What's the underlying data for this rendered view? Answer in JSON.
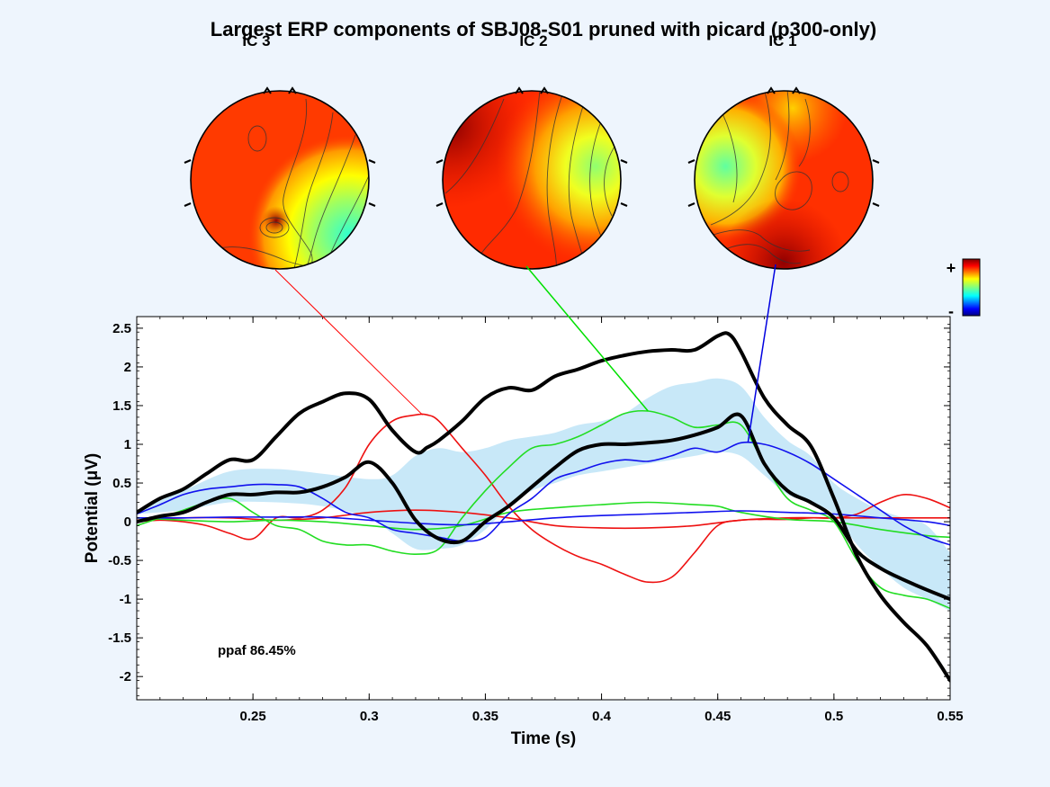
{
  "title": "Largest ERP components of SBJ08-S01 pruned with picard (p300-only)",
  "scalp_maps": [
    {
      "label": "IC 3",
      "color": "#ff0000"
    },
    {
      "label": "IC 2",
      "color": "#00e000"
    },
    {
      "label": "IC 1",
      "color": "#0000e0"
    }
  ],
  "colorbar": {
    "plus": "+",
    "minus": "-"
  },
  "annotation": "ppaf 86.45%",
  "chart_data": {
    "type": "line",
    "xlabel": "Time (s)",
    "ylabel": "Potential (μV)",
    "xlim": [
      0.2,
      0.55
    ],
    "ylim": [
      -2.3,
      2.65
    ],
    "xticks": [
      0.25,
      0.3,
      0.35,
      0.4,
      0.45,
      0.5,
      0.55
    ],
    "xtick_labels": [
      "0.25",
      "0.3",
      "0.35",
      "0.4",
      "0.45",
      "0.5",
      "0.55"
    ],
    "yticks": [
      2.5,
      2,
      1.5,
      1,
      0.5,
      0,
      -0.5,
      -1,
      -1.5,
      -2
    ],
    "ytick_labels": [
      "2.5",
      "2",
      "1.5",
      "1",
      "0.5",
      "0",
      "-0.5",
      "-1",
      "-1.5",
      "-2"
    ],
    "grid": false,
    "band": {
      "color": "#c8e8f8",
      "x": [
        0.2,
        0.22,
        0.24,
        0.26,
        0.28,
        0.3,
        0.31,
        0.32,
        0.33,
        0.34,
        0.35,
        0.36,
        0.37,
        0.38,
        0.39,
        0.4,
        0.41,
        0.42,
        0.43,
        0.44,
        0.45,
        0.46,
        0.47,
        0.48,
        0.49,
        0.5,
        0.51,
        0.52,
        0.53,
        0.54,
        0.55
      ],
      "upper": [
        0.15,
        0.4,
        0.65,
        0.68,
        0.62,
        0.55,
        0.6,
        0.85,
        0.95,
        0.9,
        0.95,
        1.05,
        1.1,
        1.15,
        1.25,
        1.3,
        1.4,
        1.6,
        1.75,
        1.8,
        1.85,
        1.75,
        1.35,
        1.05,
        0.85,
        0.5,
        0.3,
        0.15,
        0.05,
        -0.05,
        -0.4
      ],
      "lower": [
        0.1,
        0.15,
        0.25,
        0.25,
        0.2,
        0.05,
        -0.15,
        -0.35,
        -0.35,
        -0.3,
        -0.1,
        0.2,
        0.4,
        0.5,
        0.6,
        0.65,
        0.7,
        0.75,
        0.8,
        0.85,
        0.9,
        0.85,
        0.6,
        0.35,
        0.25,
        0.1,
        -0.3,
        -0.6,
        -0.85,
        -1.0,
        -1.15
      ]
    },
    "series": [
      {
        "color": "#000000",
        "width": 4,
        "x": [
          0.2,
          0.21,
          0.22,
          0.23,
          0.24,
          0.25,
          0.26,
          0.27,
          0.28,
          0.29,
          0.3,
          0.31,
          0.32,
          0.325,
          0.33,
          0.34,
          0.35,
          0.36,
          0.37,
          0.38,
          0.39,
          0.4,
          0.41,
          0.42,
          0.43,
          0.44,
          0.45,
          0.455,
          0.46,
          0.47,
          0.48,
          0.49,
          0.5,
          0.51,
          0.52,
          0.53,
          0.54,
          0.55
        ],
        "y": [
          0.12,
          0.3,
          0.42,
          0.62,
          0.8,
          0.8,
          1.1,
          1.4,
          1.55,
          1.66,
          1.58,
          1.18,
          0.9,
          0.96,
          1.05,
          1.3,
          1.6,
          1.73,
          1.7,
          1.88,
          1.97,
          2.08,
          2.15,
          2.2,
          2.22,
          2.22,
          2.4,
          2.42,
          2.2,
          1.6,
          1.25,
          0.98,
          0.3,
          -0.45,
          -0.95,
          -1.3,
          -1.6,
          -2.05
        ]
      },
      {
        "color": "#000000",
        "width": 4,
        "x": [
          0.2,
          0.21,
          0.22,
          0.23,
          0.24,
          0.25,
          0.26,
          0.27,
          0.28,
          0.29,
          0.3,
          0.31,
          0.32,
          0.33,
          0.34,
          0.35,
          0.36,
          0.37,
          0.38,
          0.39,
          0.4,
          0.41,
          0.42,
          0.43,
          0.44,
          0.45,
          0.46,
          0.47,
          0.48,
          0.49,
          0.5,
          0.51,
          0.52,
          0.53,
          0.54,
          0.55
        ],
        "y": [
          0.0,
          0.07,
          0.12,
          0.25,
          0.35,
          0.35,
          0.38,
          0.38,
          0.45,
          0.58,
          0.77,
          0.5,
          0.02,
          -0.22,
          -0.25,
          0.0,
          0.2,
          0.45,
          0.7,
          0.92,
          1.0,
          1.0,
          1.02,
          1.05,
          1.12,
          1.22,
          1.37,
          0.75,
          0.4,
          0.25,
          0.05,
          -0.38,
          -0.6,
          -0.75,
          -0.88,
          -1.0
        ]
      },
      {
        "color": "#ee1111",
        "width": 1.6,
        "x": [
          0.2,
          0.21,
          0.22,
          0.23,
          0.24,
          0.25,
          0.26,
          0.27,
          0.28,
          0.29,
          0.3,
          0.31,
          0.32,
          0.325,
          0.33,
          0.34,
          0.35,
          0.36,
          0.37,
          0.38,
          0.39,
          0.4,
          0.41,
          0.42,
          0.43,
          0.44,
          0.45,
          0.46,
          0.47,
          0.48,
          0.49,
          0.5,
          0.51,
          0.52,
          0.53,
          0.54,
          0.55
        ],
        "y": [
          0.0,
          0.02,
          0.0,
          -0.05,
          -0.15,
          -0.22,
          0.05,
          0.05,
          0.15,
          0.45,
          1.0,
          1.3,
          1.38,
          1.38,
          1.3,
          0.95,
          0.6,
          0.2,
          -0.1,
          -0.3,
          -0.45,
          -0.55,
          -0.68,
          -0.78,
          -0.72,
          -0.4,
          -0.05,
          0.02,
          0.03,
          0.03,
          0.05,
          0.05,
          0.1,
          0.25,
          0.35,
          0.3,
          0.18
        ]
      },
      {
        "color": "#ee1111",
        "width": 1.6,
        "x": [
          0.2,
          0.22,
          0.24,
          0.26,
          0.28,
          0.3,
          0.32,
          0.34,
          0.36,
          0.38,
          0.4,
          0.42,
          0.44,
          0.46,
          0.48,
          0.5,
          0.52,
          0.54,
          0.55
        ],
        "y": [
          0.02,
          0.05,
          0.05,
          0.02,
          0.05,
          0.12,
          0.15,
          0.12,
          0.05,
          -0.05,
          -0.08,
          -0.08,
          -0.05,
          0.02,
          0.05,
          0.05,
          0.05,
          0.05,
          0.05
        ]
      },
      {
        "color": "#22dd22",
        "width": 1.6,
        "x": [
          0.2,
          0.21,
          0.22,
          0.23,
          0.24,
          0.25,
          0.26,
          0.27,
          0.28,
          0.29,
          0.3,
          0.31,
          0.32,
          0.33,
          0.34,
          0.35,
          0.36,
          0.37,
          0.38,
          0.39,
          0.4,
          0.41,
          0.42,
          0.43,
          0.44,
          0.45,
          0.46,
          0.47,
          0.48,
          0.49,
          0.5,
          0.51,
          0.52,
          0.53,
          0.54,
          0.55
        ],
        "y": [
          -0.05,
          0.05,
          0.15,
          0.25,
          0.3,
          0.12,
          -0.05,
          -0.1,
          -0.25,
          -0.3,
          -0.3,
          -0.38,
          -0.42,
          -0.35,
          0.05,
          0.4,
          0.7,
          0.95,
          1.0,
          1.1,
          1.25,
          1.4,
          1.43,
          1.35,
          1.22,
          1.25,
          1.25,
          0.75,
          0.3,
          0.15,
          0.0,
          -0.5,
          -0.85,
          -0.95,
          -1.0,
          -1.12
        ]
      },
      {
        "color": "#22dd22",
        "width": 1.6,
        "x": [
          0.2,
          0.22,
          0.24,
          0.26,
          0.28,
          0.3,
          0.32,
          0.34,
          0.36,
          0.38,
          0.4,
          0.42,
          0.44,
          0.45,
          0.46,
          0.48,
          0.5,
          0.52,
          0.54,
          0.55
        ],
        "y": [
          0.05,
          0.02,
          0.0,
          0.02,
          0.0,
          -0.05,
          -0.1,
          -0.05,
          0.12,
          0.18,
          0.22,
          0.25,
          0.22,
          0.2,
          0.12,
          0.03,
          0.0,
          -0.1,
          -0.18,
          -0.2
        ]
      },
      {
        "color": "#1111ee",
        "width": 1.6,
        "x": [
          0.2,
          0.21,
          0.22,
          0.23,
          0.24,
          0.25,
          0.26,
          0.27,
          0.28,
          0.29,
          0.3,
          0.31,
          0.32,
          0.33,
          0.34,
          0.35,
          0.36,
          0.37,
          0.38,
          0.39,
          0.4,
          0.41,
          0.42,
          0.43,
          0.44,
          0.45,
          0.46,
          0.47,
          0.48,
          0.49,
          0.5,
          0.51,
          0.52,
          0.53,
          0.54,
          0.55
        ],
        "y": [
          0.1,
          0.22,
          0.35,
          0.42,
          0.45,
          0.48,
          0.48,
          0.45,
          0.3,
          0.12,
          0.05,
          -0.1,
          -0.15,
          -0.2,
          -0.25,
          -0.2,
          0.1,
          0.3,
          0.55,
          0.65,
          0.75,
          0.8,
          0.78,
          0.85,
          0.95,
          0.9,
          1.02,
          1.0,
          0.9,
          0.75,
          0.55,
          0.35,
          0.15,
          -0.05,
          -0.2,
          -0.3
        ]
      },
      {
        "color": "#1111ee",
        "width": 1.6,
        "x": [
          0.2,
          0.22,
          0.24,
          0.26,
          0.28,
          0.3,
          0.32,
          0.34,
          0.36,
          0.38,
          0.4,
          0.42,
          0.44,
          0.46,
          0.48,
          0.5,
          0.52,
          0.54,
          0.55
        ],
        "y": [
          0.05,
          0.05,
          0.06,
          0.06,
          0.06,
          0.02,
          -0.02,
          -0.04,
          0.0,
          0.05,
          0.08,
          0.1,
          0.12,
          0.14,
          0.12,
          0.1,
          0.05,
          0.0,
          -0.05
        ]
      }
    ]
  }
}
